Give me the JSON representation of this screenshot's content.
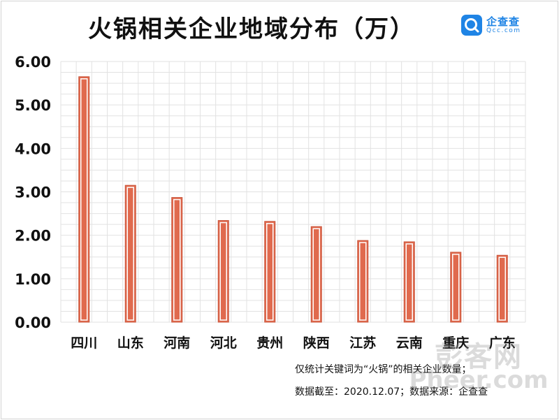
{
  "header": {
    "title": "火锅相关企业地域分布（万）",
    "logo_name": "企查查",
    "logo_domain": "Qcc.com"
  },
  "footnotes": [
    "仅统计关键词为“火锅”的相关企业数量；",
    "数据截至：2020.12.07；数据来源：企查查"
  ],
  "watermark": {
    "top": "彭客网",
    "bottom": "Pheer.com"
  },
  "colors": {
    "bar_fill": "#e06a4e",
    "bar_edge": "#c9553b",
    "bar_inner_line": "#ffffff",
    "grid": "#e2e2e2",
    "axis_text": "#111111",
    "brand": "#1f84e5"
  },
  "chart_data": {
    "type": "bar",
    "title": "火锅相关企业地域分布（万）",
    "categories": [
      "四川",
      "山东",
      "河南",
      "河北",
      "贵州",
      "陕西",
      "江苏",
      "云南",
      "重庆",
      "广东"
    ],
    "values": [
      5.65,
      3.15,
      2.87,
      2.34,
      2.32,
      2.2,
      1.88,
      1.85,
      1.61,
      1.54
    ],
    "ylim": [
      0,
      6
    ],
    "yticks": [
      "0.00",
      "1.00",
      "2.00",
      "3.00",
      "4.00",
      "5.00",
      "6.00"
    ],
    "grid": true,
    "legend": "none"
  }
}
